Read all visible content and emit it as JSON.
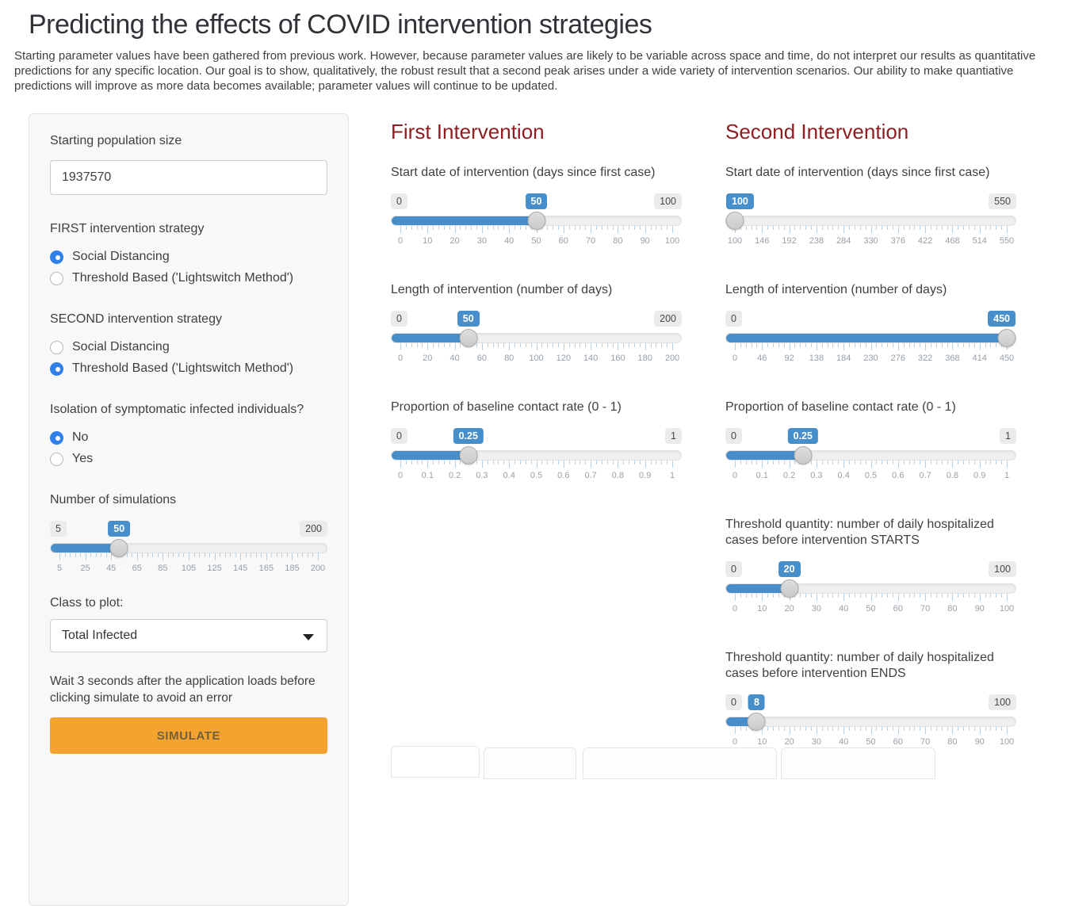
{
  "colors": {
    "heading_red": "#8f1d21",
    "slider_blue": "#478fca",
    "radio_blue": "#2f80e8",
    "button_orange": "#f5a32f",
    "button_text": "#6e5f3e"
  },
  "page": {
    "title": "Predicting the effects of COVID intervention strategies",
    "description": "Starting parameter values have been gathered from previous work. However, because parameter values are likely to be variable across space and time, do not interpret our results as quantitative predictions for any specific location. Our goal is to show, qualitatively, the robust result that a second peak arises under a wide variety of intervention scenarios. Our ability to make quantiative predictions will improve as more data becomes available; parameter values will continue to be updated."
  },
  "sidebar": {
    "population_label": "Starting population size",
    "population_value": "1937570",
    "first_strategy_label": "FIRST intervention strategy",
    "first_strategy_options": [
      {
        "label": "Social Distancing",
        "selected": true
      },
      {
        "label": "Threshold Based ('Lightswitch Method')",
        "selected": false
      }
    ],
    "second_strategy_label": "SECOND intervention strategy",
    "second_strategy_options": [
      {
        "label": "Social Distancing",
        "selected": false
      },
      {
        "label": "Threshold Based ('Lightswitch Method')",
        "selected": true
      }
    ],
    "isolation_label": "Isolation of symptomatic infected individuals?",
    "isolation_options": [
      {
        "label": "No",
        "selected": true
      },
      {
        "label": "Yes",
        "selected": false
      }
    ],
    "simulations_label": "Number of simulations",
    "simulations_slider": {
      "min": 5,
      "max": 200,
      "value": 50,
      "min_label": "5",
      "max_label": "200",
      "value_label": "50",
      "ticks": [
        "5",
        "25",
        "45",
        "65",
        "85",
        "105",
        "125",
        "145",
        "165",
        "185",
        "200"
      ]
    },
    "class_label": "Class to plot:",
    "class_value": "Total Infected",
    "note": "Wait 3 seconds after the application loads before clicking simulate to avoid an error",
    "simulate_label": "SIMULATE"
  },
  "first_intervention": {
    "title": "First Intervention",
    "start_label": "Start date of intervention (days since first case)",
    "start_slider": {
      "min": 0,
      "max": 100,
      "value": 50,
      "min_label": "0",
      "max_label": "100",
      "value_label": "50",
      "ticks": [
        "0",
        "10",
        "20",
        "30",
        "40",
        "50",
        "60",
        "70",
        "80",
        "90",
        "100"
      ]
    },
    "length_label": "Length of intervention (number of days)",
    "length_slider": {
      "min": 0,
      "max": 200,
      "value": 50,
      "min_label": "0",
      "max_label": "200",
      "value_label": "50",
      "ticks": [
        "0",
        "20",
        "40",
        "60",
        "80",
        "100",
        "120",
        "140",
        "160",
        "180",
        "200"
      ]
    },
    "contact_label": "Proportion of baseline contact rate (0 - 1)",
    "contact_slider": {
      "min": 0,
      "max": 1,
      "value": 0.25,
      "min_label": "0",
      "max_label": "1",
      "value_label": "0.25",
      "ticks": [
        "0",
        "0.1",
        "0.2",
        "0.3",
        "0.4",
        "0.5",
        "0.6",
        "0.7",
        "0.8",
        "0.9",
        "1"
      ]
    }
  },
  "second_intervention": {
    "title": "Second Intervention",
    "start_label": "Start date of intervention (days since first case)",
    "start_slider": {
      "min": 100,
      "max": 550,
      "value": 100,
      "min_label": "100",
      "max_label": "550",
      "value_label": "100",
      "ticks": [
        "100",
        "146",
        "192",
        "238",
        "284",
        "330",
        "376",
        "422",
        "468",
        "514",
        "550"
      ]
    },
    "length_label": "Length of intervention (number of days)",
    "length_slider": {
      "min": 0,
      "max": 450,
      "value": 450,
      "min_label": "0",
      "max_label": "450",
      "value_label": "450",
      "ticks": [
        "0",
        "46",
        "92",
        "138",
        "184",
        "230",
        "276",
        "322",
        "368",
        "414",
        "450"
      ]
    },
    "contact_label": "Proportion of baseline contact rate (0 - 1)",
    "contact_slider": {
      "min": 0,
      "max": 1,
      "value": 0.25,
      "min_label": "0",
      "max_label": "1",
      "value_label": "0.25",
      "ticks": [
        "0",
        "0.1",
        "0.2",
        "0.3",
        "0.4",
        "0.5",
        "0.6",
        "0.7",
        "0.8",
        "0.9",
        "1"
      ]
    },
    "threshold_start_label": "Threshold quantity: number of daily hospitalized cases before intervention STARTS",
    "threshold_start_slider": {
      "min": 0,
      "max": 100,
      "value": 20,
      "min_label": "0",
      "max_label": "100",
      "value_label": "20",
      "ticks": [
        "0",
        "10",
        "20",
        "30",
        "40",
        "50",
        "60",
        "70",
        "80",
        "90",
        "100"
      ]
    },
    "threshold_end_label": "Threshold quantity: number of daily hospitalized cases before intervention ENDS",
    "threshold_end_slider": {
      "min": 0,
      "max": 100,
      "value": 8,
      "min_label": "0",
      "max_label": "100",
      "value_label": "8",
      "ticks": [
        "0",
        "10",
        "20",
        "30",
        "40",
        "50",
        "60",
        "70",
        "80",
        "90",
        "100"
      ]
    }
  }
}
